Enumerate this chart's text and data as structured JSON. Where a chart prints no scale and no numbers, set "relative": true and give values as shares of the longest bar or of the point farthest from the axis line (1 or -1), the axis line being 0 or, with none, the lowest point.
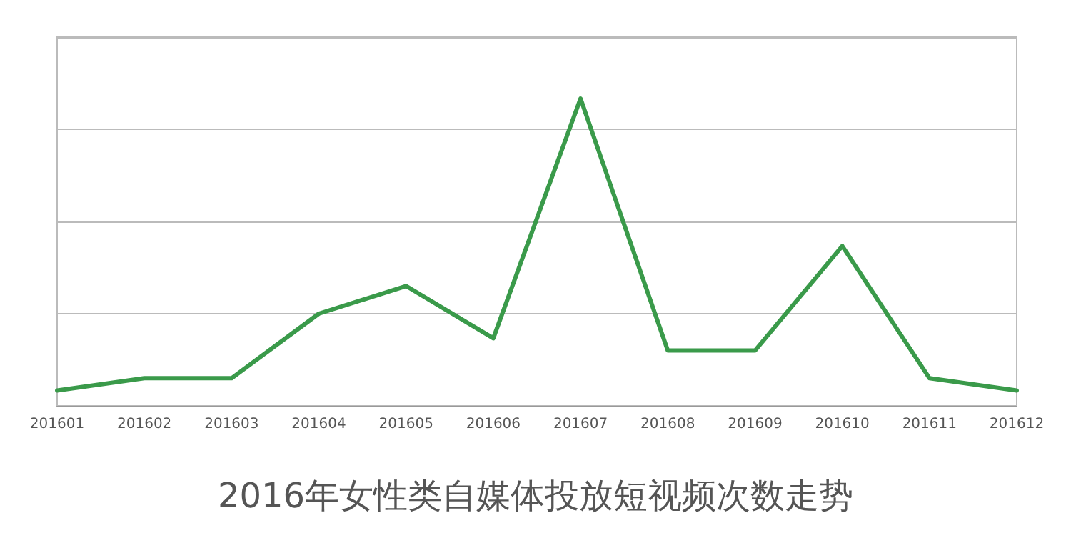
{
  "chart_data": {
    "type": "line",
    "title": "2016年女性类自媒体投放短视频次数走势",
    "categories": [
      "201601",
      "201602",
      "201603",
      "201604",
      "201605",
      "201606",
      "201607",
      "201608",
      "201609",
      "201610",
      "201611",
      "201612"
    ],
    "series": [
      {
        "color": "#3a9a4a",
        "values": [
          0.05,
          0.09,
          0.09,
          0.3,
          0.39,
          0.22,
          1,
          0.18,
          0.18,
          0.52,
          0.09,
          0.05
        ]
      }
    ],
    "relative": true,
    "grid": "y",
    "marker": "none",
    "line_style": "solid"
  }
}
